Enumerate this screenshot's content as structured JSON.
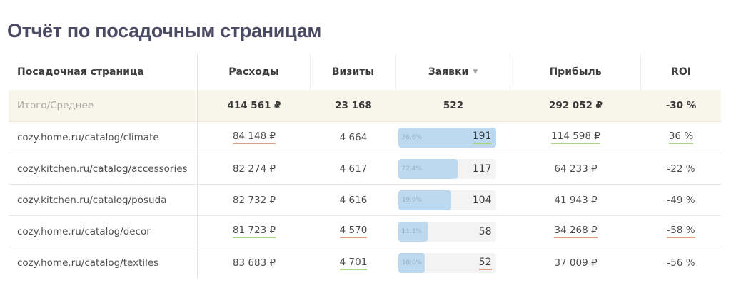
{
  "title": "Отчёт по посадочным страницам",
  "columns": [
    {
      "label": "Посадочная страница"
    },
    {
      "label": "Расходы"
    },
    {
      "label": "Визиты"
    },
    {
      "label": "Заявки",
      "sort_icon": "▼"
    },
    {
      "label": "Прибыль"
    },
    {
      "label": "ROI"
    }
  ],
  "total": {
    "label": "Итого/Среднее",
    "expenses": "414 561 ₽",
    "visits": "23 168",
    "leads": "522",
    "profit": "292 052 ₽",
    "roi": "-30 %"
  },
  "rows": [
    {
      "page": "cozy.home.ru/catalog/climate",
      "expenses": "84 148 ₽",
      "expenses_mark": "red",
      "visits": "4 664",
      "visits_mark": "",
      "leads_pct": "36.6%",
      "leads_pct_value": 36.6,
      "leads": "191",
      "leads_mark": "green",
      "profit": "114 598 ₽",
      "profit_mark": "green",
      "roi": "36 %",
      "roi_mark": "green"
    },
    {
      "page": "cozy.kitchen.ru/catalog/accessories",
      "expenses": "82 274 ₽",
      "expenses_mark": "",
      "visits": "4 617",
      "visits_mark": "",
      "leads_pct": "22.4%",
      "leads_pct_value": 22.4,
      "leads": "117",
      "leads_mark": "",
      "profit": "64 233 ₽",
      "profit_mark": "",
      "roi": "-22 %",
      "roi_mark": ""
    },
    {
      "page": "cozy.kitchen.ru/catalog/posuda",
      "expenses": "82 732 ₽",
      "expenses_mark": "",
      "visits": "4 616",
      "visits_mark": "",
      "leads_pct": "19.9%",
      "leads_pct_value": 19.9,
      "leads": "104",
      "leads_mark": "",
      "profit": "41 943 ₽",
      "profit_mark": "",
      "roi": "-49 %",
      "roi_mark": ""
    },
    {
      "page": "cozy.home.ru/catalog/decor",
      "expenses": "81 723 ₽",
      "expenses_mark": "green",
      "visits": "4 570",
      "visits_mark": "red",
      "leads_pct": "11.1%",
      "leads_pct_value": 11.1,
      "leads": "58",
      "leads_mark": "",
      "profit": "34 268 ₽",
      "profit_mark": "red",
      "roi": "-58 %",
      "roi_mark": "red"
    },
    {
      "page": "cozy.home.ru/catalog/textiles",
      "expenses": "83 683 ₽",
      "expenses_mark": "",
      "visits": "4 701",
      "visits_mark": "green",
      "leads_pct": "10.0%",
      "leads_pct_value": 10.0,
      "leads": "52",
      "leads_mark": "red",
      "profit": "37 009 ₽",
      "profit_mark": "",
      "roi": "-56 %",
      "roi_mark": ""
    }
  ],
  "colors": {
    "title": "#4b4a63",
    "total_bg": "#f8f6ea",
    "bar_fill": "#bcd9ef",
    "bar_bg": "#f3f3f3",
    "mark_red": "#e8a08a",
    "mark_green": "#a9d37d"
  }
}
